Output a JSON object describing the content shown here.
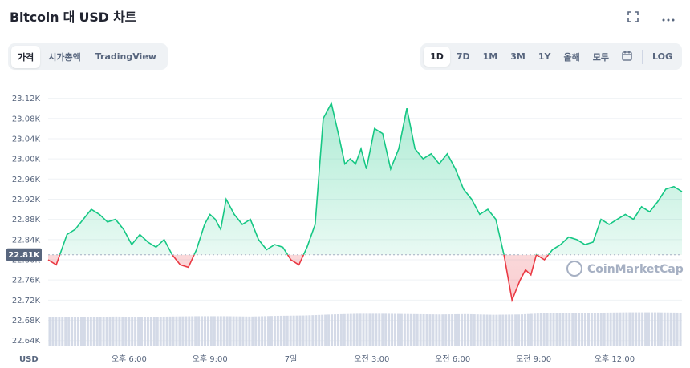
{
  "header": {
    "title": "Bitcoin 대 USD 차트",
    "fullscreen_icon": "expand-icon",
    "more_icon": "ellipsis-icon"
  },
  "tabs": [
    "가격",
    "시가총액",
    "TradingView"
  ],
  "ranges": [
    "1D",
    "7D",
    "1M",
    "3M",
    "1Y",
    "올해",
    "모두"
  ],
  "calendar_icon": "calendar-icon",
  "log_label": "LOG",
  "colors": {
    "up": "#16c784",
    "down": "#ea3943",
    "current_label_bg": "#58667e",
    "volume": "#cfd6e4"
  },
  "chart_data": {
    "type": "area",
    "currency_label": "USD",
    "current_price_label": "22.81K",
    "baseline": 22810,
    "ylim": [
      22630,
      23140
    ],
    "y_ticks": [
      "23.12K",
      "23.08K",
      "23.04K",
      "23.00K",
      "22.96K",
      "22.92K",
      "22.88K",
      "22.84K",
      "22.80K",
      "22.76K",
      "22.72K",
      "22.68K",
      "22.64K"
    ],
    "y_tick_values": [
      23120,
      23080,
      23040,
      23000,
      22960,
      22920,
      22880,
      22840,
      22800,
      22760,
      22720,
      22680,
      22640
    ],
    "x_ticks": [
      "오후 6:00",
      "오후 9:00",
      "7일",
      "오전 3:00",
      "오전 6:00",
      "오전 9:00",
      "오후 12:00"
    ],
    "x_tick_hours": [
      3,
      6,
      9,
      12,
      15,
      18,
      21
    ],
    "x_range_hours": [
      0,
      23.5
    ],
    "series": [
      {
        "hours": [
          0.0,
          0.3,
          0.5,
          0.7,
          1.0,
          1.3,
          1.6,
          1.9,
          2.2,
          2.5,
          2.8,
          3.1,
          3.4,
          3.7,
          4.0,
          4.3,
          4.6,
          4.9,
          5.2,
          5.5,
          5.8,
          6.0,
          6.2,
          6.4,
          6.6,
          6.9,
          7.2,
          7.5,
          7.8,
          8.1,
          8.4,
          8.7,
          9.0,
          9.3,
          9.6,
          9.9,
          10.2,
          10.5,
          10.8,
          11.0,
          11.2,
          11.4,
          11.6,
          11.8,
          12.1,
          12.4,
          12.7,
          13.0,
          13.3,
          13.6,
          13.9,
          14.2,
          14.5,
          14.8,
          15.1,
          15.4,
          15.7,
          16.0,
          16.3,
          16.6,
          16.9,
          17.2,
          17.5,
          17.7,
          17.9,
          18.1,
          18.4,
          18.7,
          19.0,
          19.3,
          19.6,
          19.9,
          20.2,
          20.5,
          20.8,
          21.1,
          21.4,
          21.7,
          22.0,
          22.3,
          22.6,
          22.9,
          23.2,
          23.5
        ],
        "values": [
          22800,
          22790,
          22820,
          22850,
          22860,
          22880,
          22900,
          22890,
          22875,
          22880,
          22860,
          22830,
          22850,
          22835,
          22825,
          22840,
          22810,
          22790,
          22785,
          22820,
          22870,
          22890,
          22880,
          22860,
          22920,
          22890,
          22870,
          22880,
          22840,
          22820,
          22830,
          22825,
          22800,
          22790,
          22825,
          22870,
          23080,
          23110,
          23040,
          22990,
          23000,
          22990,
          23020,
          22980,
          23060,
          23050,
          22980,
          23020,
          23100,
          23020,
          23000,
          23010,
          22990,
          23010,
          22980,
          22940,
          22920,
          22890,
          22900,
          22880,
          22810,
          22720,
          22760,
          22780,
          22770,
          22810,
          22800,
          22820,
          22830,
          22845,
          22840,
          22830,
          22835,
          22880,
          22870,
          22880,
          22890,
          22880,
          22905,
          22895,
          22915,
          22940,
          22945,
          22935
        ]
      }
    ],
    "volume": {
      "hours": [
        0.5,
        1.5,
        2.5,
        3.5,
        4.5,
        5.5,
        6.5,
        7.5,
        8.5,
        9.5,
        10.5,
        11.5,
        12.5,
        13.5,
        14.5,
        15.5,
        16.5,
        17.5,
        18.5,
        19.5,
        20.5,
        21.5,
        22.5,
        23.5
      ],
      "values": [
        0.8,
        0.81,
        0.82,
        0.81,
        0.82,
        0.83,
        0.83,
        0.82,
        0.84,
        0.85,
        0.88,
        0.9,
        0.9,
        0.89,
        0.88,
        0.89,
        0.87,
        0.88,
        0.92,
        0.93,
        0.93,
        0.94,
        0.94,
        0.93
      ]
    },
    "watermark": "CoinMarketCap"
  }
}
